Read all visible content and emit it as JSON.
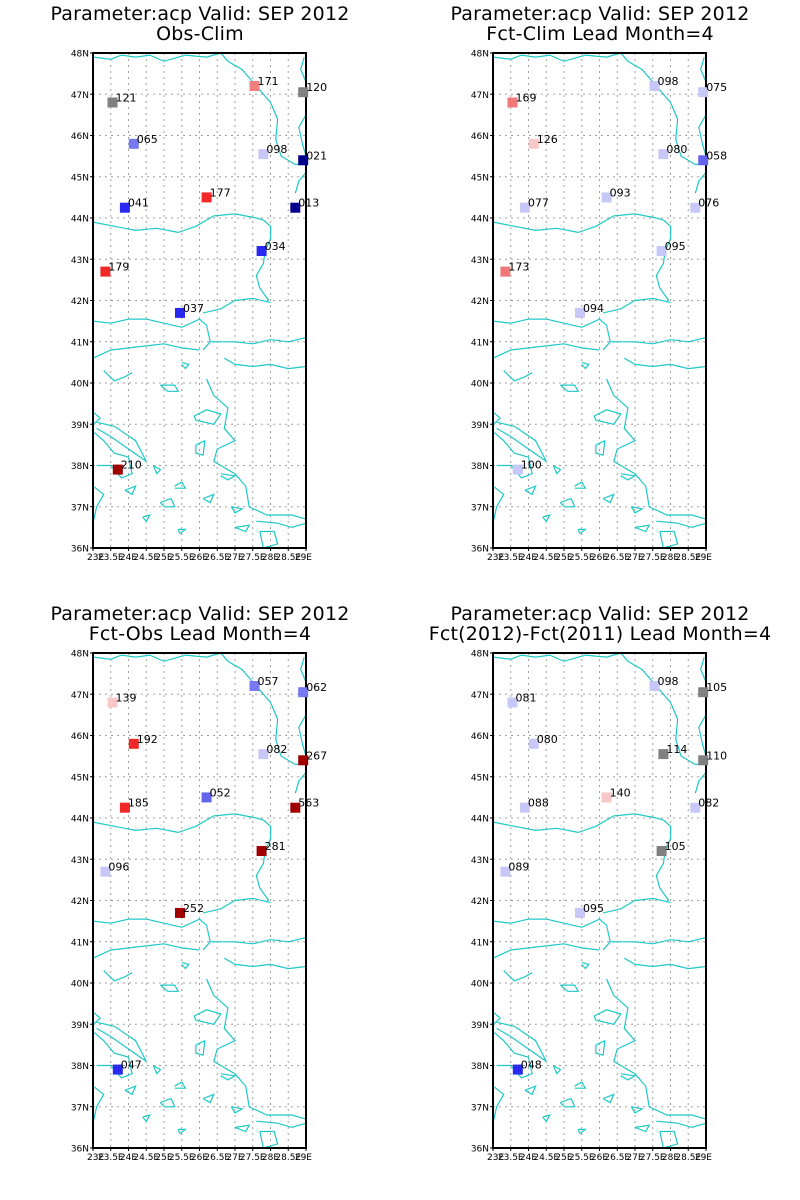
{
  "chart_data": [
    {
      "type": "scatter",
      "title": "Parameter:acp Valid: SEP 2012",
      "subtitle": "Obs-Clim",
      "xlabel": "",
      "ylabel": "",
      "xlim": [
        23,
        29
      ],
      "ylim": [
        36,
        48
      ],
      "grid": true,
      "x_ticks": [
        "23E",
        "23.5E",
        "24E",
        "24.5E",
        "25E",
        "25.5E",
        "26E",
        "26.5E",
        "27E",
        "27.5E",
        "28E",
        "28.5E",
        "29E"
      ],
      "y_ticks": [
        "36N",
        "37N",
        "38N",
        "39N",
        "40N",
        "41N",
        "42N",
        "43N",
        "44N",
        "45N",
        "46N",
        "47N",
        "48N"
      ],
      "points": [
        {
          "lon": 23.55,
          "lat": 46.8,
          "label": "121",
          "color": "#808080"
        },
        {
          "lon": 24.15,
          "lat": 45.8,
          "label": "065",
          "color": "#7878f0"
        },
        {
          "lon": 27.55,
          "lat": 47.2,
          "label": "171",
          "color": "#f08080"
        },
        {
          "lon": 28.92,
          "lat": 47.05,
          "label": "120",
          "color": "#808080"
        },
        {
          "lon": 27.8,
          "lat": 45.55,
          "label": "098",
          "color": "#c8c8f8"
        },
        {
          "lon": 28.92,
          "lat": 45.4,
          "label": "021",
          "color": "#00008c"
        },
        {
          "lon": 26.2,
          "lat": 44.5,
          "label": "177",
          "color": "#f02828"
        },
        {
          "lon": 23.9,
          "lat": 44.25,
          "label": "041",
          "color": "#2828f0"
        },
        {
          "lon": 28.7,
          "lat": 44.25,
          "label": "013",
          "color": "#00008c"
        },
        {
          "lon": 27.75,
          "lat": 43.2,
          "label": "034",
          "color": "#2828f0"
        },
        {
          "lon": 23.35,
          "lat": 42.7,
          "label": "179",
          "color": "#f02828"
        },
        {
          "lon": 25.45,
          "lat": 41.7,
          "label": "037",
          "color": "#2828f0"
        },
        {
          "lon": 23.7,
          "lat": 37.9,
          "label": "210",
          "color": "#a00000"
        }
      ]
    },
    {
      "type": "scatter",
      "title": "Parameter:acp Valid: SEP 2012",
      "subtitle": "Fct-Clim Lead Month=4",
      "xlabel": "",
      "ylabel": "",
      "xlim": [
        23,
        29
      ],
      "ylim": [
        36,
        48
      ],
      "grid": true,
      "x_ticks": [
        "23E",
        "23.5E",
        "24E",
        "24.5E",
        "25E",
        "25.5E",
        "26E",
        "26.5E",
        "27E",
        "27.5E",
        "28E",
        "28.5E",
        "29E"
      ],
      "y_ticks": [
        "36N",
        "37N",
        "38N",
        "39N",
        "40N",
        "41N",
        "42N",
        "43N",
        "44N",
        "45N",
        "46N",
        "47N",
        "48N"
      ],
      "points": [
        {
          "lon": 23.55,
          "lat": 46.8,
          "label": "169",
          "color": "#f07878"
        },
        {
          "lon": 24.15,
          "lat": 45.8,
          "label": "126",
          "color": "#f8c8c8"
        },
        {
          "lon": 27.55,
          "lat": 47.2,
          "label": "098",
          "color": "#c8c8f8"
        },
        {
          "lon": 28.92,
          "lat": 47.05,
          "label": "075",
          "color": "#c8c8f8"
        },
        {
          "lon": 27.8,
          "lat": 45.55,
          "label": "080",
          "color": "#c8c8f8"
        },
        {
          "lon": 28.92,
          "lat": 45.4,
          "label": "058",
          "color": "#6464e8"
        },
        {
          "lon": 26.2,
          "lat": 44.5,
          "label": "093",
          "color": "#c8c8f8"
        },
        {
          "lon": 23.9,
          "lat": 44.25,
          "label": "077",
          "color": "#c8c8f8"
        },
        {
          "lon": 28.7,
          "lat": 44.25,
          "label": "076",
          "color": "#c8c8f8"
        },
        {
          "lon": 27.75,
          "lat": 43.2,
          "label": "095",
          "color": "#c8c8f8"
        },
        {
          "lon": 23.35,
          "lat": 42.7,
          "label": "173",
          "color": "#f07878"
        },
        {
          "lon": 25.45,
          "lat": 41.7,
          "label": "094",
          "color": "#c8c8f8"
        },
        {
          "lon": 23.7,
          "lat": 37.9,
          "label": "100",
          "color": "#c8c8f8"
        }
      ]
    },
    {
      "type": "scatter",
      "title": "Parameter:acp Valid: SEP 2012",
      "subtitle": "Fct-Obs Lead Month=4",
      "xlabel": "",
      "ylabel": "",
      "xlim": [
        23,
        29
      ],
      "ylim": [
        36,
        48
      ],
      "grid": true,
      "x_ticks": [
        "23E",
        "23.5E",
        "24E",
        "24.5E",
        "25E",
        "25.5E",
        "26E",
        "26.5E",
        "27E",
        "27.5E",
        "28E",
        "28.5E",
        "29E"
      ],
      "y_ticks": [
        "36N",
        "37N",
        "38N",
        "39N",
        "40N",
        "41N",
        "42N",
        "43N",
        "44N",
        "45N",
        "46N",
        "47N",
        "48N"
      ],
      "points": [
        {
          "lon": 23.55,
          "lat": 46.8,
          "label": "139",
          "color": "#f8c8c8"
        },
        {
          "lon": 24.15,
          "lat": 45.8,
          "label": "192",
          "color": "#f02828"
        },
        {
          "lon": 27.55,
          "lat": 47.2,
          "label": "057",
          "color": "#7878f0"
        },
        {
          "lon": 28.92,
          "lat": 47.05,
          "label": "062",
          "color": "#7878f0"
        },
        {
          "lon": 27.8,
          "lat": 45.55,
          "label": "082",
          "color": "#c8c8f8"
        },
        {
          "lon": 28.92,
          "lat": 45.4,
          "label": "267",
          "color": "#a00000"
        },
        {
          "lon": 26.2,
          "lat": 44.5,
          "label": "052",
          "color": "#6464e8"
        },
        {
          "lon": 23.9,
          "lat": 44.25,
          "label": "185",
          "color": "#f02828"
        },
        {
          "lon": 28.7,
          "lat": 44.25,
          "label": "563",
          "color": "#a00000"
        },
        {
          "lon": 27.75,
          "lat": 43.2,
          "label": "281",
          "color": "#a00000"
        },
        {
          "lon": 23.35,
          "lat": 42.7,
          "label": "096",
          "color": "#c8c8f8"
        },
        {
          "lon": 25.45,
          "lat": 41.7,
          "label": "252",
          "color": "#a00000"
        },
        {
          "lon": 23.7,
          "lat": 37.9,
          "label": "047",
          "color": "#2828f0"
        }
      ]
    },
    {
      "type": "scatter",
      "title": "Parameter:acp Valid: SEP 2012",
      "subtitle": "Fct(2012)-Fct(2011) Lead Month=4",
      "xlabel": "",
      "ylabel": "",
      "xlim": [
        23,
        29
      ],
      "ylim": [
        36,
        48
      ],
      "grid": true,
      "x_ticks": [
        "23E",
        "23.5E",
        "24E",
        "24.5E",
        "25E",
        "25.5E",
        "26E",
        "26.5E",
        "27E",
        "27.5E",
        "28E",
        "28.5E",
        "29E"
      ],
      "y_ticks": [
        "36N",
        "37N",
        "38N",
        "39N",
        "40N",
        "41N",
        "42N",
        "43N",
        "44N",
        "45N",
        "46N",
        "47N",
        "48N"
      ],
      "points": [
        {
          "lon": 23.55,
          "lat": 46.8,
          "label": "081",
          "color": "#c8c8f8"
        },
        {
          "lon": 24.15,
          "lat": 45.8,
          "label": "080",
          "color": "#c8c8f8"
        },
        {
          "lon": 27.55,
          "lat": 47.2,
          "label": "098",
          "color": "#c8c8f8"
        },
        {
          "lon": 28.92,
          "lat": 47.05,
          "label": "105",
          "color": "#808080"
        },
        {
          "lon": 27.8,
          "lat": 45.55,
          "label": "114",
          "color": "#808080"
        },
        {
          "lon": 28.92,
          "lat": 45.4,
          "label": "110",
          "color": "#808080"
        },
        {
          "lon": 26.2,
          "lat": 44.5,
          "label": "140",
          "color": "#f8c8c8"
        },
        {
          "lon": 23.9,
          "lat": 44.25,
          "label": "088",
          "color": "#c8c8f8"
        },
        {
          "lon": 28.7,
          "lat": 44.25,
          "label": "082",
          "color": "#c8c8f8"
        },
        {
          "lon": 27.75,
          "lat": 43.2,
          "label": "105",
          "color": "#808080"
        },
        {
          "lon": 23.35,
          "lat": 42.7,
          "label": "089",
          "color": "#c8c8f8"
        },
        {
          "lon": 25.45,
          "lat": 41.7,
          "label": "095",
          "color": "#c8c8f8"
        },
        {
          "lon": 23.7,
          "lat": 37.9,
          "label": "048",
          "color": "#2828f0"
        }
      ]
    }
  ],
  "colors": {
    "coastline": "#1ec8c8",
    "frame": "#000000",
    "grid": "#a0a0a0"
  }
}
